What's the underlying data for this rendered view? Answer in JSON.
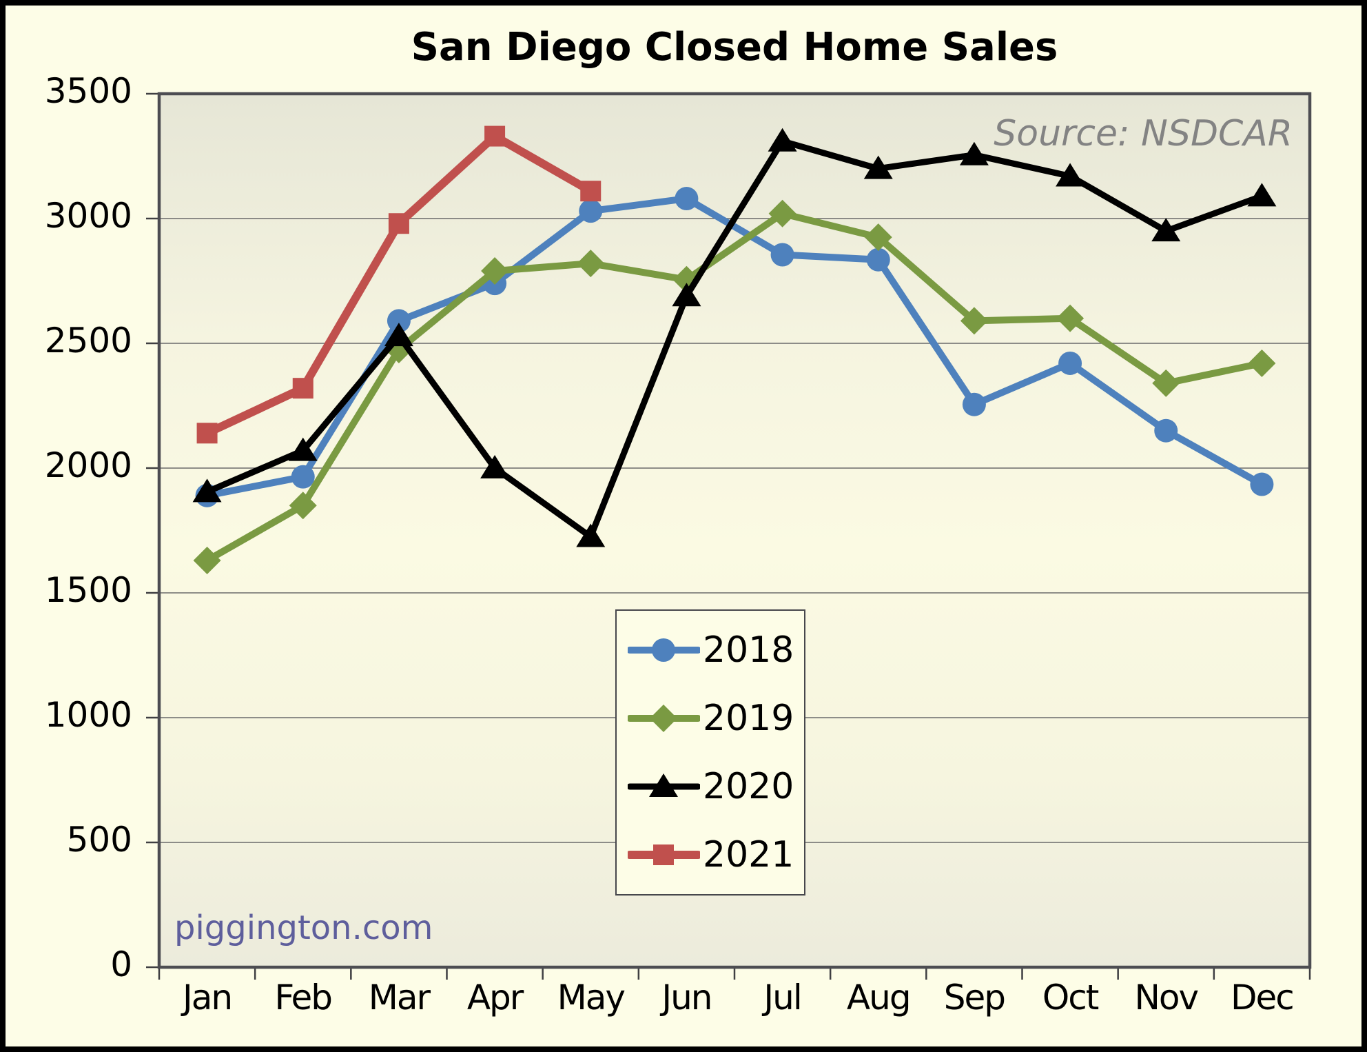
{
  "title": "San Diego Closed Home Sales",
  "source_note": "Source: NSDCAR",
  "watermark": "piggington.com",
  "colors": {
    "background": "#FDFDE7",
    "plot_gradient_top": "#E6E6D6",
    "plot_gradient_mid": "#FBFAE3",
    "plot_gradient_bottom": "#ECEBDC",
    "gridline": "#6A6A6A",
    "axis_frame": "#4D4D52",
    "series_2018": "#4E81BD",
    "series_2019": "#7A9A42",
    "series_2020": "#000000",
    "series_2021": "#C0504D",
    "title_text": "#000000",
    "source_text": "#838383",
    "watermark_text": "#5E5E9C"
  },
  "chart_data": {
    "type": "line",
    "title": "San Diego Closed Home Sales",
    "categories": [
      "Jan",
      "Feb",
      "Mar",
      "Apr",
      "May",
      "Jun",
      "Jul",
      "Aug",
      "Sep",
      "Oct",
      "Nov",
      "Dec"
    ],
    "series": [
      {
        "name": "2018",
        "color": "#4E81BD",
        "marker": "circle",
        "values": [
          1890,
          1965,
          2590,
          2740,
          3030,
          3080,
          2855,
          2835,
          2255,
          2420,
          2150,
          1935
        ]
      },
      {
        "name": "2019",
        "color": "#7A9A42",
        "marker": "diamond",
        "values": [
          1630,
          1850,
          2475,
          2790,
          2820,
          2755,
          3020,
          2925,
          2590,
          2600,
          2340,
          2420
        ]
      },
      {
        "name": "2020",
        "color": "#000000",
        "marker": "triangle",
        "values": [
          1905,
          2070,
          2530,
          2000,
          1725,
          2690,
          3310,
          3200,
          3255,
          3170,
          2950,
          3090
        ]
      },
      {
        "name": "2021",
        "color": "#C0504D",
        "marker": "square",
        "values": [
          2140,
          2320,
          2980,
          3330,
          3110
        ]
      }
    ],
    "ylim": [
      0,
      3500
    ],
    "ytick_step": 500,
    "yticks": [
      0,
      500,
      1000,
      1500,
      2000,
      2500,
      3000,
      3500
    ],
    "grid": true,
    "legend_position": "lower-center",
    "legend_labels": [
      "2018",
      "2019",
      "2020",
      "2021"
    ]
  }
}
